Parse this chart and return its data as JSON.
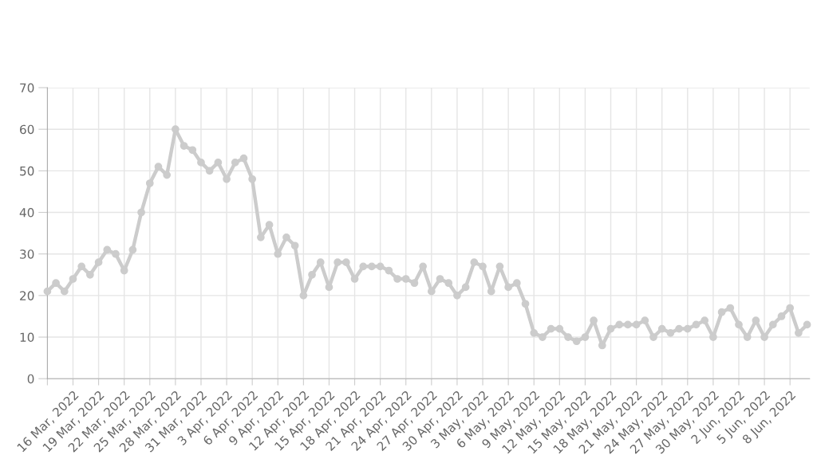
{
  "chart_data": {
    "type": "line",
    "categories": [
      null,
      null,
      null,
      "16 Mar, 2022",
      null,
      null,
      "19 Mar, 2022",
      null,
      null,
      "22 Mar, 2022",
      null,
      null,
      "25 Mar, 2022",
      null,
      null,
      "28 Mar, 2022",
      null,
      null,
      "31 Mar, 2022",
      null,
      null,
      "3 Apr, 2022",
      null,
      null,
      "6 Apr, 2022",
      null,
      null,
      "9 Apr, 2022",
      null,
      null,
      "12 Apr, 2022",
      null,
      null,
      "15 Apr, 2022",
      null,
      null,
      "18 Apr, 2022",
      null,
      null,
      "21 Apr, 2022",
      null,
      null,
      "24 Apr, 2022",
      null,
      null,
      "27 Apr, 2022",
      null,
      null,
      "30 Apr, 2022",
      null,
      null,
      "3 May, 2022",
      null,
      null,
      "6 May, 2022",
      null,
      null,
      "9 May, 2022",
      null,
      null,
      "12 May, 2022",
      null,
      null,
      "15 May, 2022",
      null,
      null,
      "18 May, 2022",
      null,
      null,
      "21 May, 2022",
      null,
      null,
      "24 May, 2022",
      null,
      null,
      "27 May, 2022",
      null,
      null,
      "30 May, 2022",
      null,
      null,
      "2 Jun, 2022",
      null,
      null,
      "5 Jun, 2022",
      null,
      null,
      "8 Jun, 2022",
      null,
      null
    ],
    "series": [
      {
        "color": "#cccccc",
        "values": [
          21,
          23,
          21,
          24,
          27,
          25,
          28,
          31,
          30,
          26,
          31,
          40,
          47,
          51,
          49,
          60,
          56,
          55,
          52,
          50,
          52,
          48,
          52,
          53,
          48,
          34,
          37,
          30,
          34,
          32,
          20,
          25,
          28,
          22,
          28,
          28,
          24,
          27,
          27,
          27,
          26,
          24,
          24,
          23,
          27,
          21,
          24,
          23,
          20,
          22,
          28,
          27,
          21,
          27,
          22,
          23,
          18,
          11,
          10,
          12,
          12,
          10,
          9,
          10,
          14,
          8,
          12,
          13,
          13,
          13,
          14,
          10,
          12,
          11,
          12,
          12,
          13,
          14,
          10,
          16,
          17,
          13,
          10,
          14,
          10,
          13,
          15,
          17,
          11,
          13
        ]
      }
    ],
    "ylim": [
      0,
      70
    ],
    "yticks": [
      0,
      10,
      20,
      30,
      40,
      50,
      60,
      70
    ],
    "grid": true,
    "marker": "circle",
    "line_style": "solid"
  }
}
